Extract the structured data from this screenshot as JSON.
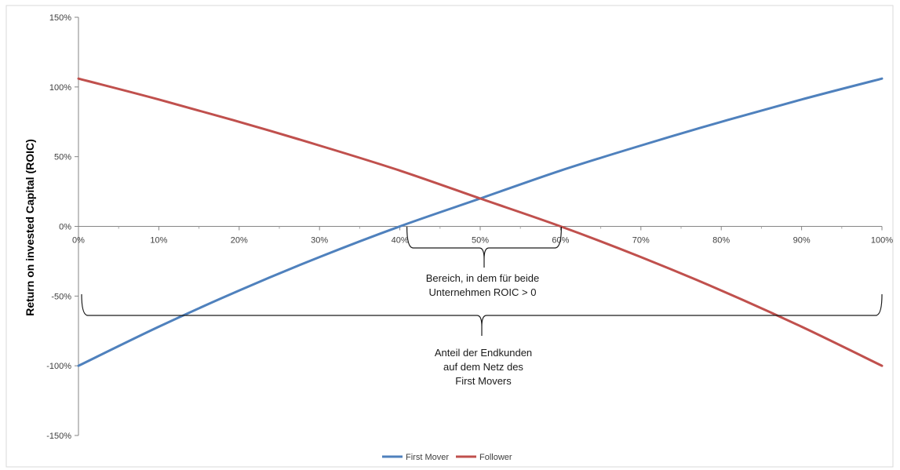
{
  "chart_data": {
    "type": "line",
    "xlabel": "",
    "ylabel": "Return on invested Capital (ROIC)",
    "xlim": [
      0,
      100
    ],
    "ylim": [
      -150,
      150
    ],
    "x_ticks": [
      "0%",
      "10%",
      "20%",
      "30%",
      "40%",
      "50%",
      "60%",
      "70%",
      "80%",
      "90%",
      "100%"
    ],
    "y_ticks": [
      "150%",
      "100%",
      "50%",
      "0%",
      "-50%",
      "-100%",
      "-150%"
    ],
    "x_tick_values": [
      0,
      10,
      20,
      30,
      40,
      50,
      60,
      70,
      80,
      90,
      100
    ],
    "y_tick_values": [
      150,
      100,
      50,
      0,
      -50,
      -100,
      -150
    ],
    "x": [
      0,
      10,
      20,
      30,
      40,
      50,
      60,
      70,
      80,
      90,
      100
    ],
    "series": [
      {
        "name": "First Mover",
        "color": "#4F81BD",
        "values": [
          -100,
          -72,
          -46,
          -22,
          0,
          20,
          40,
          58,
          75,
          91,
          106
        ]
      },
      {
        "name": "Follower",
        "color": "#C0504D",
        "values": [
          106,
          91,
          75,
          58,
          40,
          20,
          0,
          -22,
          -46,
          -72,
          -100
        ]
      }
    ],
    "grid": false,
    "legend_position": "bottom",
    "annotations": {
      "inner_brace": {
        "x_range": [
          40,
          60
        ],
        "lines": [
          "Bereich, in dem für beide",
          "Unternehmen ROIC > 0"
        ]
      },
      "outer_brace": {
        "x_range": [
          0,
          100
        ],
        "lines": [
          "Anteil der Endkunden",
          "auf dem  Netz des",
          "First Movers"
        ]
      }
    }
  }
}
